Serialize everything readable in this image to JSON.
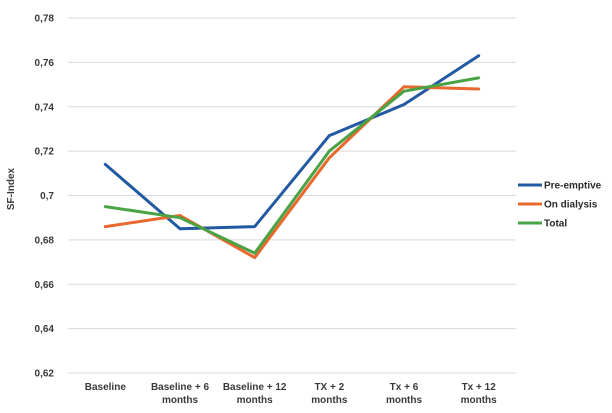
{
  "chart_data": {
    "type": "line",
    "title": "",
    "xlabel": "",
    "ylabel": "SF-Index",
    "ylim": [
      0.62,
      0.78
    ],
    "yticks": [
      "0,62",
      "0,64",
      "0,66",
      "0,68",
      "0,7",
      "0,72",
      "0,74",
      "0,76",
      "0,78"
    ],
    "grid": true,
    "legend_position": "right",
    "categories": [
      [
        "Baseline"
      ],
      [
        "Baseline + 6",
        "months"
      ],
      [
        "Baseline + 12",
        "months"
      ],
      [
        "TX + 2",
        "months"
      ],
      [
        "Tx + 6",
        "months"
      ],
      [
        "Tx + 12",
        "months"
      ]
    ],
    "series": [
      {
        "name": "Pre-emptive",
        "color": "#2359a3",
        "values": [
          0.714,
          0.685,
          0.686,
          0.727,
          0.741,
          0.763
        ]
      },
      {
        "name": "On dialysis",
        "color": "#e8682e",
        "values": [
          0.686,
          0.691,
          0.672,
          0.717,
          0.749,
          0.748
        ]
      },
      {
        "name": "Total",
        "color": "#4aa344",
        "values": [
          0.695,
          0.69,
          0.674,
          0.72,
          0.747,
          0.753
        ]
      }
    ]
  }
}
